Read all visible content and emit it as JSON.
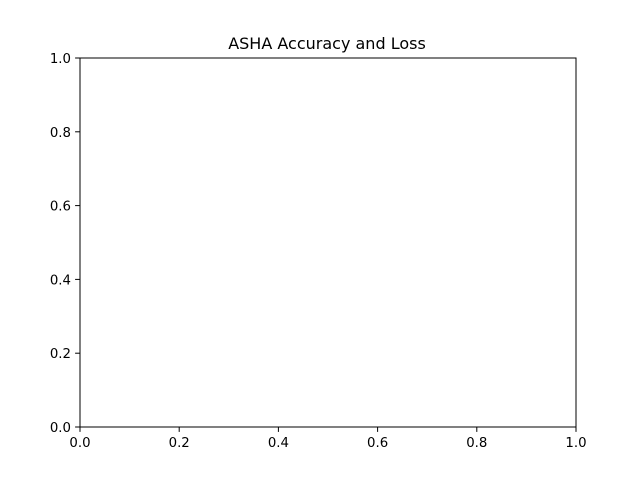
{
  "chart_data": {
    "type": "line",
    "title": "ASHA Accuracy and Loss",
    "xlabel": "",
    "ylabel": "",
    "xlim": [
      0.0,
      1.0
    ],
    "ylim": [
      0.0,
      1.0
    ],
    "xticks": [
      "0.0",
      "0.2",
      "0.4",
      "0.6",
      "0.8",
      "1.0"
    ],
    "yticks": [
      "0.0",
      "0.2",
      "0.4",
      "0.6",
      "0.8",
      "1.0"
    ],
    "series": [],
    "grid": false,
    "legend": "none"
  }
}
